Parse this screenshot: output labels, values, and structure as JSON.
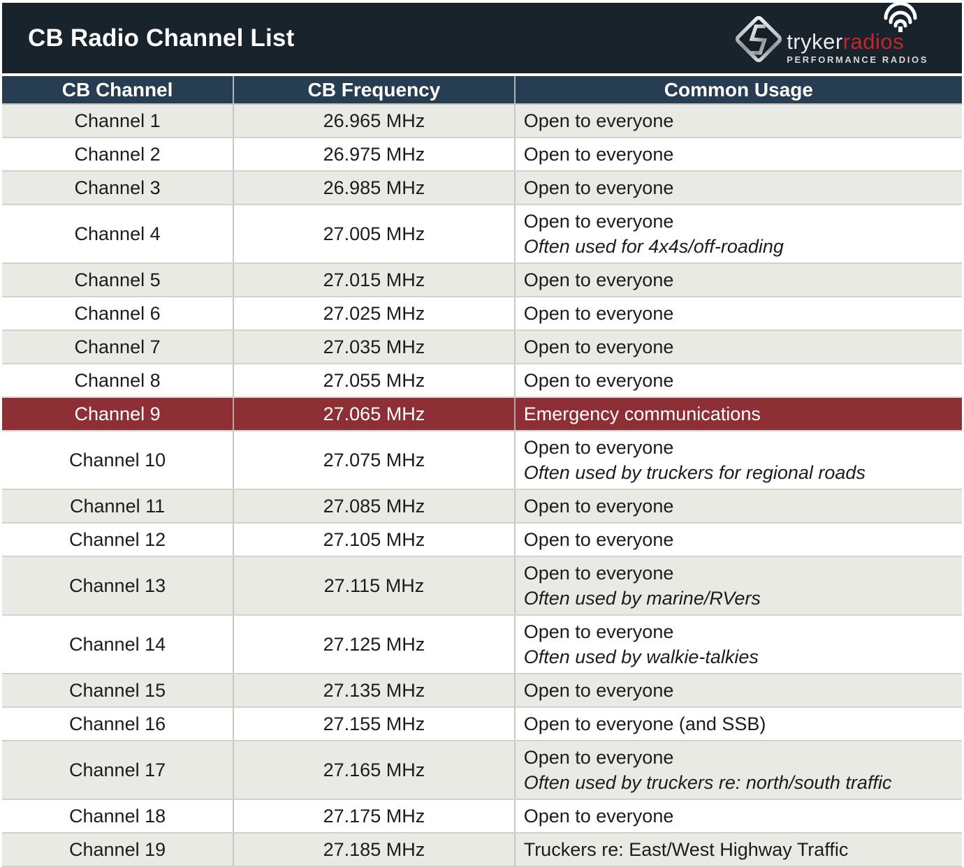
{
  "page": {
    "title": "CB Radio Channel List",
    "logo": {
      "brand_first": "tryker",
      "brand_second": "radios",
      "tagline": "PERFORMANCE RADIOS"
    }
  },
  "table": {
    "columns": [
      "CB Channel",
      "CB Frequency",
      "Common Usage"
    ],
    "rows": [
      {
        "channel": "Channel 1",
        "frequency": "26.965 MHz",
        "usage": "Open to everyone",
        "note": "",
        "highlight": false
      },
      {
        "channel": "Channel 2",
        "frequency": "26.975 MHz",
        "usage": "Open to everyone",
        "note": "",
        "highlight": false
      },
      {
        "channel": "Channel 3",
        "frequency": "26.985 MHz",
        "usage": "Open to everyone",
        "note": "",
        "highlight": false
      },
      {
        "channel": "Channel 4",
        "frequency": "27.005 MHz",
        "usage": "Open to everyone",
        "note": "Often used for 4x4s/off-roading",
        "highlight": false
      },
      {
        "channel": "Channel 5",
        "frequency": "27.015 MHz",
        "usage": "Open to everyone",
        "note": "",
        "highlight": false
      },
      {
        "channel": "Channel 6",
        "frequency": "27.025 MHz",
        "usage": "Open to everyone",
        "note": "",
        "highlight": false
      },
      {
        "channel": "Channel 7",
        "frequency": "27.035 MHz",
        "usage": "Open to everyone",
        "note": "",
        "highlight": false
      },
      {
        "channel": "Channel 8",
        "frequency": "27.055 MHz",
        "usage": "Open to everyone",
        "note": "",
        "highlight": false
      },
      {
        "channel": "Channel 9",
        "frequency": "27.065 MHz",
        "usage": "Emergency communications",
        "note": "",
        "highlight": true
      },
      {
        "channel": "Channel 10",
        "frequency": "27.075 MHz",
        "usage": "Open to everyone",
        "note": "Often used by truckers for regional roads",
        "highlight": false
      },
      {
        "channel": "Channel 11",
        "frequency": "27.085 MHz",
        "usage": "Open to everyone",
        "note": "",
        "highlight": false
      },
      {
        "channel": "Channel 12",
        "frequency": "27.105 MHz",
        "usage": "Open to everyone",
        "note": "",
        "highlight": false
      },
      {
        "channel": "Channel 13",
        "frequency": "27.115 MHz",
        "usage": "Open to everyone",
        "note": "Often used by marine/RVers",
        "highlight": false
      },
      {
        "channel": "Channel 14",
        "frequency": "27.125 MHz",
        "usage": "Open to everyone",
        "note": "Often used by walkie-talkies",
        "highlight": false
      },
      {
        "channel": "Channel 15",
        "frequency": "27.135 MHz",
        "usage": "Open to everyone",
        "note": "",
        "highlight": false
      },
      {
        "channel": "Channel 16",
        "frequency": "27.155 MHz",
        "usage": "Open to everyone (and SSB)",
        "note": "",
        "highlight": false
      },
      {
        "channel": "Channel 17",
        "frequency": "27.165 MHz",
        "usage": "Open to everyone",
        "note": "Often used by truckers re: north/south traffic",
        "highlight": false
      },
      {
        "channel": "Channel 18",
        "frequency": "27.175 MHz",
        "usage": "Open to everyone",
        "note": "",
        "highlight": false
      },
      {
        "channel": "Channel 19",
        "frequency": "27.185 MHz",
        "usage": "Truckers re: East/West Highway Traffic",
        "note": "",
        "highlight": false
      }
    ]
  },
  "colors": {
    "header_bar": "#18232c",
    "column_header": "#273d51",
    "row_alt": "#e9eae4",
    "highlight_row": "#8e2f36",
    "brand_red": "#c0262c"
  }
}
